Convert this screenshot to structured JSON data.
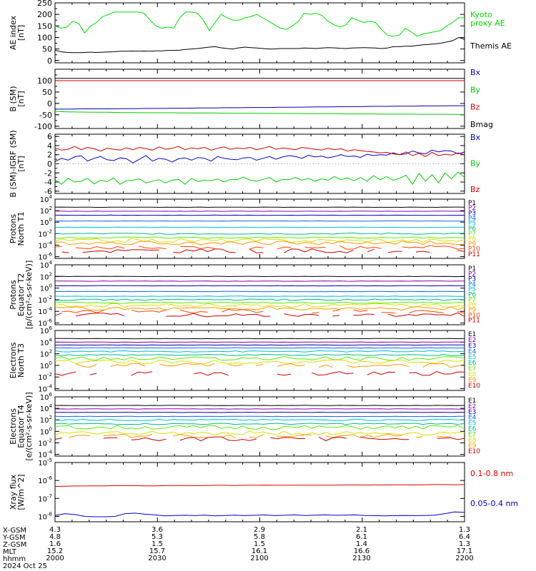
{
  "chart_data": [
    {
      "id": "ae",
      "type": "line",
      "ylabel": "AE index\n[nT]",
      "ylim": [
        -10,
        250
      ],
      "yticks": [
        0,
        50,
        100,
        150,
        200,
        250
      ],
      "x_range": [
        "2000",
        "2200"
      ],
      "series": [
        {
          "name": "Kyoto\nproxy AE",
          "color": "#00dd00",
          "values": [
            150,
            140,
            145,
            170,
            160,
            120,
            150,
            165,
            190,
            200,
            210,
            210,
            210,
            210,
            210,
            205,
            175,
            150,
            140,
            145,
            140,
            185,
            210,
            210,
            205,
            175,
            130,
            165,
            200,
            185,
            175,
            175,
            185,
            190,
            200,
            185,
            170,
            155,
            140,
            135,
            150,
            170,
            205,
            200,
            205,
            195,
            170,
            155,
            145,
            155,
            185,
            175,
            165,
            170,
            165,
            135,
            110,
            105,
            110,
            140,
            125,
            105,
            115,
            120,
            125,
            130,
            150,
            165,
            185,
            185
          ]
        },
        {
          "name": "Themis AE",
          "color": "#000000",
          "values": [
            45,
            38,
            35,
            34,
            34,
            35,
            36,
            35,
            36,
            37,
            38,
            40,
            40,
            41,
            40,
            41,
            40,
            42,
            42,
            44,
            44,
            45,
            48,
            50,
            52,
            55,
            58,
            60,
            55,
            52,
            50,
            55,
            58,
            56,
            54,
            52,
            50,
            50,
            52,
            52,
            52,
            52,
            54,
            53,
            52,
            54,
            56,
            55,
            53,
            52,
            54,
            55,
            56,
            55,
            54,
            52,
            54,
            60,
            60,
            62,
            62,
            65,
            68,
            70,
            72,
            75,
            80,
            86,
            100,
            92
          ]
        }
      ]
    },
    {
      "id": "bsm",
      "type": "line",
      "ylabel": "B (SM)\n[nT]",
      "ylim": [
        -110,
        150
      ],
      "yticks": [
        -100,
        -50,
        0,
        50,
        100
      ],
      "series": [
        {
          "name": "Bx",
          "color": "#0000aa",
          "values": [
            -25,
            -25,
            -24,
            -24,
            -24,
            -23,
            -23,
            -22,
            -22,
            -21,
            -21,
            -20,
            -20,
            -19,
            -19,
            -18,
            -18,
            -17,
            -17,
            -16,
            -15,
            -15,
            -14,
            -14,
            -13,
            -13,
            -12,
            -12,
            -11,
            -11,
            -10,
            -10
          ]
        },
        {
          "name": "By",
          "color": "#00cc00",
          "values": [
            -35,
            -37,
            -38,
            -39,
            -39,
            -40,
            -40,
            -41,
            -41,
            -41,
            -42,
            -42,
            -42,
            -43,
            -43,
            -43,
            -44,
            -44,
            -44,
            -45,
            -45,
            -45,
            -46,
            -46,
            -46,
            -47,
            -47,
            -47,
            -48,
            -48,
            -48,
            -49
          ]
        },
        {
          "name": "Bz",
          "color": "#cc0000",
          "values": [
            100,
            100,
            100,
            100,
            100,
            100,
            100,
            100,
            100,
            100,
            100,
            100,
            100,
            100,
            100,
            100,
            100,
            100,
            100,
            100,
            100,
            100,
            100,
            100,
            100,
            100,
            100,
            100,
            100,
            100,
            100,
            100
          ]
        },
        {
          "name": "Bmag",
          "color": "#000000",
          "values": [
            110,
            110,
            110,
            110,
            110,
            110,
            110,
            110,
            110,
            110,
            110,
            110,
            110,
            110,
            110,
            110,
            110,
            110,
            110,
            110,
            110,
            110,
            110,
            110,
            110,
            110,
            110,
            110,
            110,
            110,
            110,
            110
          ]
        }
      ]
    },
    {
      "id": "bigrf",
      "type": "line",
      "ylabel": "B (SM)-IGRF (SM)\n[nT]",
      "ylim": [
        -6.5,
        6.5
      ],
      "yticks": [
        -6,
        -4,
        -2,
        0,
        2,
        4,
        6
      ],
      "series": [
        {
          "name": "Bx",
          "color": "#0000cc",
          "values": [
            0.5,
            1.2,
            0.8,
            1.5,
            1.8,
            0.6,
            1.2,
            1.6,
            0.9,
            0.7,
            1.3,
            1.1,
            0.2,
            1.0,
            1.8,
            0.6,
            1.2,
            1.0,
            0.4,
            1.1,
            1.3,
            0.8,
            1.4,
            1.2,
            0.6,
            1.6,
            1.2,
            1.0,
            0.9,
            1.3,
            1.4,
            0.8,
            1.2,
            1.6,
            1.0,
            1.5,
            1.8,
            1.6,
            1.2,
            1.9,
            1.5,
            1.7,
            1.3,
            1.6,
            2.0,
            1.6,
            1.7,
            1.4,
            2.1,
            1.8,
            2.0,
            1.9,
            2.4,
            2.0,
            2.2,
            2.8,
            2.4,
            2.2,
            3.0,
            2.6,
            2.9,
            2.8,
            2.2,
            2.6
          ]
        },
        {
          "name": "By",
          "color": "#00cc00",
          "values": [
            -3.5,
            -4.5,
            -3.2,
            -4.0,
            -3.8,
            -3.2,
            -4.4,
            -3.6,
            -3.9,
            -3.1,
            -4.5,
            -3.7,
            -3.6,
            -3.3,
            -4.2,
            -3.8,
            -3.5,
            -4.2,
            -3.6,
            -3.4,
            -4.5,
            -3.2,
            -3.9,
            -3.6,
            -3.7,
            -3.3,
            -4.0,
            -3.4,
            -3.5,
            -2.9,
            -3.6,
            -3.8,
            -3.4,
            -3.0,
            -4.0,
            -3.4,
            -3.5,
            -3.0,
            -3.6,
            -3.2,
            -3.8,
            -3.3,
            -3.6,
            -2.8,
            -3.5,
            -3.1,
            -3.7,
            -3.0,
            -3.8,
            -2.6,
            -3.5,
            -2.8,
            -3.6,
            -3.2,
            -2.5,
            -4.5,
            -2.1,
            -3.8,
            -2.4,
            -4.2,
            -2.0,
            -3.3,
            -1.8,
            -3.0
          ]
        },
        {
          "name": "Bz",
          "color": "#cc0000",
          "values": [
            3.5,
            3.0,
            3.2,
            3.8,
            3.1,
            3.6,
            3.3,
            2.8,
            3.4,
            3.2,
            3.0,
            3.5,
            3.1,
            3.6,
            3.3,
            3.0,
            3.7,
            3.2,
            3.4,
            3.8,
            3.1,
            3.5,
            3.3,
            3.6,
            3.0,
            3.4,
            3.7,
            3.2,
            3.5,
            3.3,
            3.6,
            3.1,
            3.4,
            3.8,
            3.2,
            3.5,
            3.3,
            3.1,
            3.6,
            3.4,
            3.2,
            3.0,
            3.4,
            3.1,
            3.3,
            2.8,
            3.1,
            2.9,
            2.7,
            2.6,
            2.4,
            2.5,
            2.2,
            2.0,
            2.6,
            1.8,
            2.3,
            1.6,
            2.5,
            1.8,
            2.1,
            1.9,
            2.4,
            2.0
          ]
        }
      ]
    },
    {
      "id": "p_north",
      "type": "line",
      "log": true,
      "ylabel": "Protons\nNorth T1",
      "ylim_exp": [
        -6.3,
        4
      ],
      "ytick_exps": [
        -6,
        -4,
        -2,
        0,
        2,
        4
      ],
      "labels": [
        "P1",
        "P2",
        "P3",
        "P4",
        "P5",
        "P6",
        "P7",
        "P8",
        "P9",
        "P10",
        "P11"
      ],
      "colors": [
        "#000000",
        "#8800aa",
        "#0000aa",
        "#1166ff",
        "#00bbdd",
        "#00bb88",
        "#55ee00",
        "#dddd00",
        "#ff9900",
        "#ff4400",
        "#cc0000"
      ],
      "levels_exp": [
        2.6,
        1.9,
        1.2,
        0.2,
        -0.9,
        -2.0,
        -2.7,
        -3.2,
        -3.6,
        -4.4,
        -5.0
      ]
    },
    {
      "id": "p_equator",
      "type": "line",
      "log": true,
      "ylabel": "Protons\nEquator T2\n[p/(cm²-s-sr-keV)]",
      "ylim_exp": [
        -6.3,
        4
      ],
      "ytick_exps": [
        -6,
        -4,
        -2,
        0,
        2,
        4
      ],
      "labels": [
        "P1",
        "P2",
        "P3",
        "P4",
        "P5",
        "P6",
        "P7",
        "P8",
        "P9",
        "P10",
        "P11"
      ],
      "colors": [
        "#000000",
        "#8800aa",
        "#0000aa",
        "#1166ff",
        "#00bbdd",
        "#00bb88",
        "#55ee00",
        "#dddd00",
        "#ff9900",
        "#ff4400",
        "#cc0000"
      ],
      "levels_exp": [
        2.0,
        1.2,
        0.4,
        -0.6,
        -1.4,
        -2.0,
        -2.5,
        -3.0,
        -3.5,
        -4.0,
        -4.6
      ]
    },
    {
      "id": "e_north",
      "type": "line",
      "log": true,
      "ylabel": "Electrons\nNorth T3",
      "ylim_exp": [
        -4.3,
        6
      ],
      "ytick_exps": [
        -4,
        -2,
        0,
        2,
        4,
        6
      ],
      "labels": [
        "E1",
        "E2",
        "E3",
        "E4",
        "E5",
        "E6",
        "E7",
        "E8",
        "E9",
        "E10"
      ],
      "colors": [
        "#000000",
        "#8800aa",
        "#0000aa",
        "#1166ff",
        "#00bbdd",
        "#00bb88",
        "#55ee00",
        "#dddd00",
        "#ff9900",
        "#cc0000"
      ],
      "levels_exp": [
        4.6,
        4.0,
        3.5,
        3.0,
        2.4,
        1.8,
        1.2,
        0.6,
        0.0,
        -1.4
      ]
    },
    {
      "id": "e_equator",
      "type": "line",
      "log": true,
      "ylabel": "Electrons\nEquator T4\n[e/(cm²-s-sr-keV)]",
      "ylim_exp": [
        -4.3,
        6
      ],
      "ytick_exps": [
        -4,
        -2,
        0,
        2,
        4,
        6
      ],
      "labels": [
        "E1",
        "E2",
        "E3",
        "E4",
        "E5",
        "E6",
        "E7",
        "E8",
        "E9",
        "E10"
      ],
      "colors": [
        "#000000",
        "#8800aa",
        "#0000aa",
        "#1166ff",
        "#00bbdd",
        "#00bb88",
        "#55ee00",
        "#dddd00",
        "#ff9900",
        "#cc0000"
      ],
      "levels_exp": [
        4.5,
        3.9,
        3.3,
        2.6,
        2.0,
        1.3,
        0.7,
        -0.3,
        -0.8,
        -1.3
      ]
    },
    {
      "id": "xray",
      "type": "line",
      "log": true,
      "ylabel": "Xray flux\n[W/m^2]",
      "ylim_exp": [
        -8.3,
        -5
      ],
      "ytick_exps": [
        -8,
        -7,
        -6,
        -5
      ],
      "series": [
        {
          "name": "0.1-0.8 nm",
          "color": "#dd0000",
          "values_exp": [
            -6.33,
            -6.32,
            -6.31,
            -6.31,
            -6.3,
            -6.3,
            -6.29,
            -6.29,
            -6.29,
            -6.3,
            -6.3,
            -6.29,
            -6.28,
            -6.28,
            -6.29,
            -6.28,
            -6.27,
            -6.27,
            -6.28,
            -6.27,
            -6.27,
            -6.26,
            -6.27,
            -6.27,
            -6.26,
            -6.26,
            -6.27,
            -6.26,
            -6.26,
            -6.25,
            -6.25,
            -6.26,
            -6.25,
            -6.25,
            -6.24,
            -6.24,
            -6.25,
            -6.24,
            -6.23,
            -6.23,
            -6.24,
            -6.22
          ]
        },
        {
          "name": "0.05-0.4 nm",
          "color": "#0000cc",
          "values_exp": [
            -7.95,
            -7.85,
            -7.9,
            -8.0,
            -8.02,
            -8.02,
            -8.0,
            -7.85,
            -7.82,
            -7.88,
            -7.92,
            -7.97,
            -7.95,
            -7.94,
            -7.96,
            -7.93,
            -7.97,
            -7.95,
            -7.93,
            -7.96,
            -7.94,
            -7.92,
            -7.96,
            -7.94,
            -7.92,
            -7.95,
            -7.93,
            -7.92,
            -7.94,
            -7.93,
            -7.92,
            -7.95,
            -7.96,
            -7.97,
            -7.96,
            -7.95,
            -7.96,
            -7.95,
            -7.93,
            -7.85,
            -7.75,
            -7.78
          ]
        }
      ]
    }
  ],
  "ephemeris": {
    "rows": [
      {
        "label": "X-GSM",
        "values": [
          "4.3",
          "3.6",
          "2.9",
          "2.1",
          "1.3"
        ]
      },
      {
        "label": "Y-GSM",
        "values": [
          "4.8",
          "5.3",
          "5.8",
          "6.1",
          "6.4"
        ]
      },
      {
        "label": "Z-GSM",
        "values": [
          "1.6",
          "1.5",
          "1.5",
          "1.4",
          "1.3"
        ]
      },
      {
        "label": "MLT",
        "values": [
          "15.2",
          "15.7",
          "16.1",
          "16.6",
          "17.1"
        ]
      },
      {
        "label": "hhmm",
        "values": [
          "2000",
          "2030",
          "2100",
          "2130",
          "2200"
        ]
      }
    ],
    "date": "2024 Oct 25"
  }
}
